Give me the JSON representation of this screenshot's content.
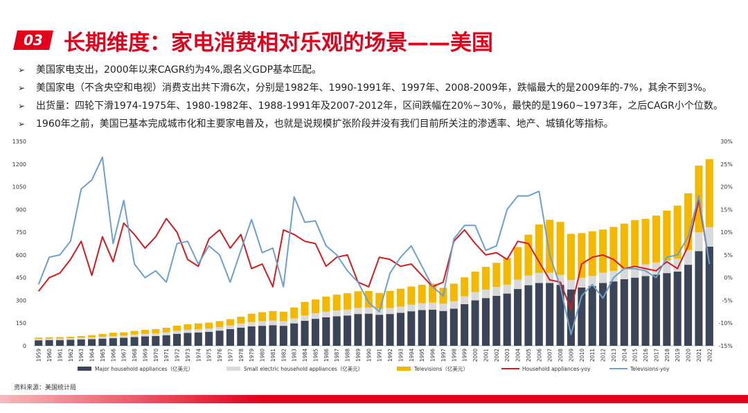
{
  "header": {
    "number": "03",
    "title": "长期维度：家电消费相对乐观的场景——美国"
  },
  "bullets": [
    "美国家电支出，2000年以来CAGR约为4%,跟名义GDP基本匹配。",
    "美国家电（不含央空和电视）消费支出共下滑6次，分别是1982年、1990-1991年、1997年、2008-2009年，跌幅最大的是2009年的-7%，其余不到3%。",
    "出货量：四轮下滑1974-1975年、1980-1982年、1988-1991年及2007-2012年，区间跌幅在20%~30%，最快的是1960~1973年，之后CAGR小个位数。",
    "1960年之前，美国已基本完成城市化和主要家电普及，也就是说规模扩张阶段并没有我们目前所关注的渗透率、地产、城镇化等指标。"
  ],
  "source": "资料来源：美国统计局",
  "colors": {
    "brand_red": "#e3001b",
    "major": "#3b4557",
    "small": "#d9d9d9",
    "tv": "#f5b800",
    "ha_yoy": "#d7191c",
    "tv_yoy": "#6c9fcf"
  },
  "chart_data": {
    "type": "bar",
    "stacked": true,
    "categories": [
      "1959",
      "1960",
      "1961",
      "1962",
      "1963",
      "1964",
      "1965",
      "1966",
      "1967",
      "1968",
      "1969",
      "1970",
      "1971",
      "1972",
      "1973",
      "1974",
      "1975",
      "1976",
      "1977",
      "1978",
      "1979",
      "1980",
      "1981",
      "1982",
      "1983",
      "1984",
      "1985",
      "1986",
      "1987",
      "1988",
      "1989",
      "1990",
      "1991",
      "1992",
      "1993",
      "1994",
      "1995",
      "1996",
      "1997",
      "1998",
      "1999",
      "2000",
      "2001",
      "2002",
      "2003",
      "2004",
      "2005",
      "2006",
      "2007",
      "2008",
      "2009",
      "2010",
      "2011",
      "2012",
      "2013",
      "2014",
      "2015",
      "2016",
      "2017",
      "2018",
      "2019",
      "2020",
      "2021",
      "2022"
    ],
    "y_left": {
      "min": 0,
      "max": 1350,
      "ticks": [
        0,
        150,
        300,
        450,
        600,
        750,
        900,
        1050,
        1200,
        1350
      ]
    },
    "y_right": {
      "min": -15,
      "max": 30,
      "ticks": [
        "-15%",
        "-10%",
        "-5%",
        "0%",
        "5%",
        "10%",
        "15%",
        "20%",
        "25%",
        "30%"
      ]
    },
    "series": [
      {
        "name": "Major household appliances（亿美元）",
        "type": "bar",
        "values": [
          36,
          38,
          38,
          40,
          42,
          44,
          47,
          50,
          53,
          58,
          62,
          64,
          70,
          79,
          85,
          88,
          92,
          100,
          110,
          120,
          128,
          132,
          136,
          132,
          148,
          165,
          178,
          188,
          195,
          200,
          210,
          212,
          205,
          210,
          218,
          228,
          236,
          238,
          230,
          245,
          275,
          300,
          315,
          330,
          345,
          375,
          400,
          415,
          415,
          402,
          372,
          385,
          395,
          415,
          425,
          440,
          450,
          460,
          470,
          480,
          490,
          535,
          625,
          655
        ]
      },
      {
        "name": "Small electric household appliances（亿美元）",
        "type": "bar",
        "values": [
          10,
          10,
          10,
          10,
          11,
          12,
          13,
          14,
          14,
          16,
          17,
          18,
          19,
          20,
          21,
          22,
          22,
          23,
          25,
          27,
          29,
          30,
          31,
          31,
          33,
          35,
          36,
          37,
          38,
          39,
          40,
          40,
          39,
          40,
          41,
          43,
          45,
          47,
          48,
          50,
          52,
          55,
          56,
          58,
          59,
          62,
          64,
          66,
          67,
          66,
          62,
          64,
          66,
          68,
          70,
          72,
          75,
          78,
          80,
          83,
          86,
          97,
          125,
          128
        ]
      },
      {
        "name": "Televisions（亿美元）",
        "type": "bar",
        "values": [
          8,
          8,
          9,
          10,
          11,
          14,
          18,
          22,
          22,
          24,
          26,
          28,
          30,
          34,
          36,
          38,
          39,
          40,
          41,
          45,
          55,
          60,
          62,
          62,
          72,
          90,
          92,
          100,
          105,
          108,
          110,
          110,
          105,
          112,
          118,
          120,
          122,
          125,
          105,
          115,
          125,
          135,
          150,
          160,
          175,
          215,
          270,
          320,
          350,
          350,
          305,
          295,
          295,
          285,
          290,
          295,
          305,
          300,
          310,
          330,
          350,
          375,
          440,
          450
        ]
      },
      {
        "name": "Household appliances-yoy",
        "type": "line",
        "axis": "right",
        "values": [
          -3,
          0,
          1,
          4,
          8,
          0.5,
          9,
          3.5,
          12,
          9.5,
          6.5,
          9,
          13,
          10,
          4,
          2.5,
          8.5,
          10.5,
          6.5,
          9.5,
          2,
          3,
          -2,
          10.5,
          9.5,
          8,
          7.5,
          2.5,
          4.5,
          5,
          -1,
          -2,
          4.5,
          4,
          2.5,
          3,
          0.5,
          -2,
          -1,
          8,
          10.5,
          7.5,
          5,
          5.5,
          4,
          8,
          7.5,
          3.5,
          -0.5,
          -1,
          -7,
          3,
          4.5,
          5,
          4,
          2,
          2.5,
          2,
          1.5,
          3.5,
          2,
          7,
          17,
          3
        ]
      },
      {
        "name": "Televisions-yoy",
        "type": "line",
        "axis": "right",
        "values": [
          -1.5,
          4.5,
          5,
          8,
          19.5,
          21.5,
          26.5,
          7.5,
          17,
          3,
          0,
          1.5,
          -1,
          7.5,
          8,
          3,
          7,
          5,
          -1,
          6,
          12.8,
          5.5,
          6.5,
          -2,
          17.8,
          12.2,
          12.5,
          7,
          5,
          1.5,
          -1,
          -5.5,
          -7.5,
          1,
          4.5,
          7,
          2.5,
          -2,
          -4,
          8.5,
          11.5,
          11.5,
          6,
          7,
          15,
          18,
          18,
          19,
          5,
          -2,
          -12.5,
          -4,
          -1.5,
          -4.5,
          0,
          2,
          2,
          1.5,
          0,
          4.5,
          5,
          9,
          18,
          3
        ]
      }
    ]
  }
}
